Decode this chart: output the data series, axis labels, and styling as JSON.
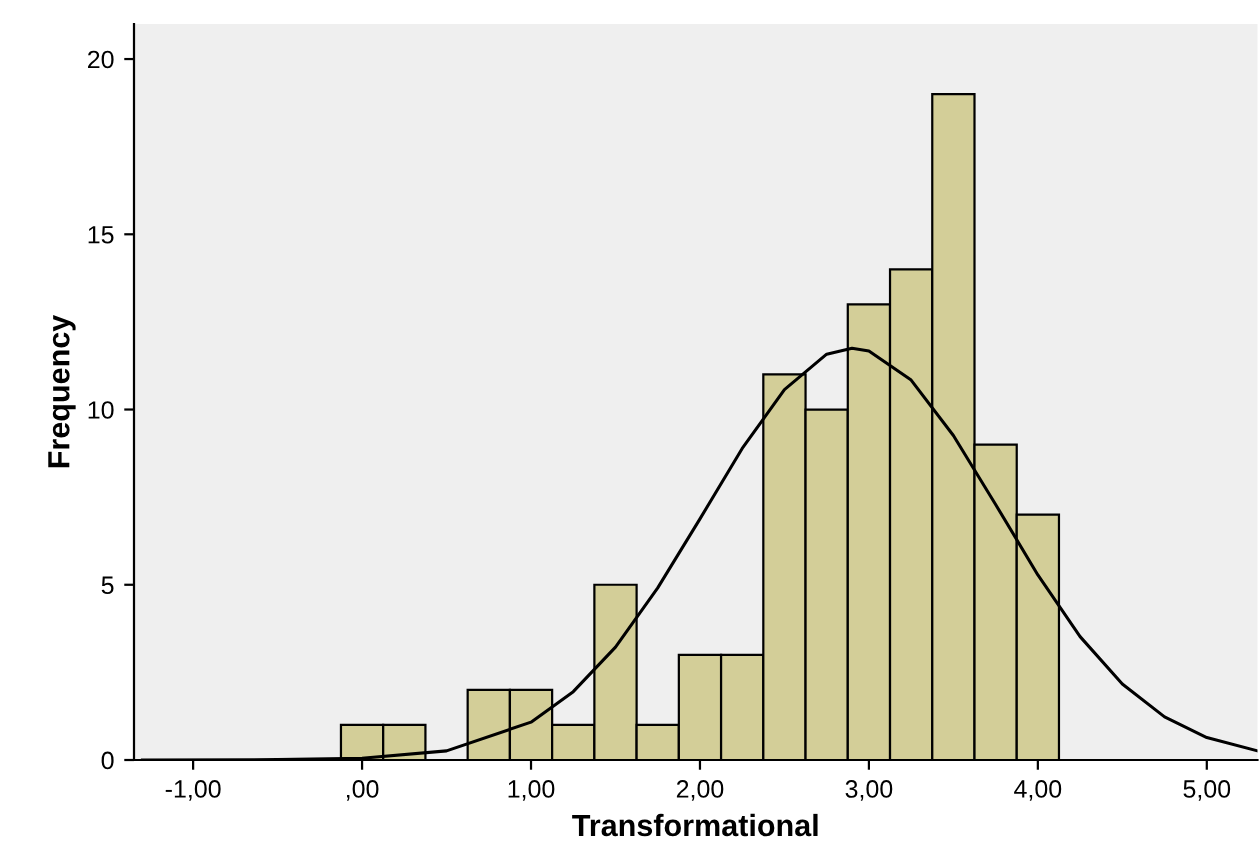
{
  "chart_data": {
    "type": "histogram",
    "xlabel": "Transformational",
    "ylabel": "Frequency",
    "bins": [
      -0.125,
      0.125,
      0.375,
      0.625,
      0.875,
      1.125,
      1.375,
      1.625,
      1.875,
      2.125,
      2.375,
      2.625,
      2.875,
      3.125,
      3.375,
      3.625,
      3.875,
      4.125
    ],
    "values": [
      1,
      1,
      0,
      2,
      2,
      1,
      5,
      1,
      3,
      3,
      11,
      10,
      13,
      14,
      19,
      9,
      7
    ],
    "color": "#d3ce98",
    "series": [
      {
        "type": "line",
        "color": "#000000",
        "x": [
          -1.3,
          -0.5,
          0,
          0.5,
          1,
          1.25,
          1.5,
          1.75,
          2,
          2.25,
          2.5,
          2.75,
          2.9,
          3,
          3.25,
          3.5,
          3.75,
          4,
          4.25,
          4.5,
          4.75,
          5,
          5.3
        ],
        "values": [
          0,
          0.01,
          0.05,
          0.26,
          1.08,
          1.95,
          3.22,
          4.91,
          6.88,
          8.89,
          10.57,
          11.58,
          11.75,
          11.67,
          10.84,
          9.26,
          7.29,
          5.28,
          3.52,
          2.17,
          1.23,
          0.64,
          0.26
        ]
      }
    ],
    "xlim": [
      -1.35,
      5.3
    ],
    "ylim": [
      0,
      21
    ],
    "xticks": [
      {
        "value": -1,
        "label": "-1,00"
      },
      {
        "value": 0,
        "label": ",00"
      },
      {
        "value": 1,
        "label": "1,00"
      },
      {
        "value": 2,
        "label": "2,00"
      },
      {
        "value": 3,
        "label": "3,00"
      },
      {
        "value": 4,
        "label": "4,00"
      },
      {
        "value": 5,
        "label": "5,00"
      }
    ],
    "yticks": [
      0,
      5,
      10,
      15,
      20
    ],
    "grid": false
  }
}
